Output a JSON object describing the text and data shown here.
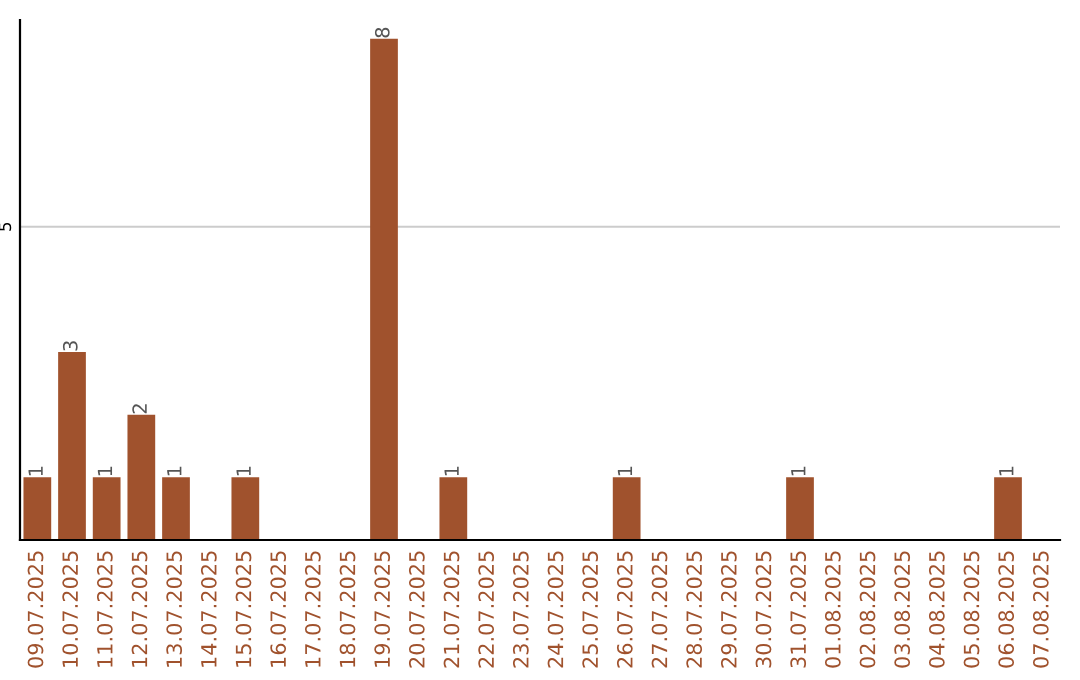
{
  "chart_data": {
    "type": "bar",
    "categories": [
      "09.07.2025",
      "10.07.2025",
      "11.07.2025",
      "12.07.2025",
      "13.07.2025",
      "14.07.2025",
      "15.07.2025",
      "16.07.2025",
      "17.07.2025",
      "18.07.2025",
      "19.07.2025",
      "20.07.2025",
      "21.07.2025",
      "22.07.2025",
      "23.07.2025",
      "24.07.2025",
      "25.07.2025",
      "26.07.2025",
      "27.07.2025",
      "28.07.2025",
      "29.07.2025",
      "30.07.2025",
      "31.07.2025",
      "01.08.2025",
      "02.08.2025",
      "03.08.2025",
      "04.08.2025",
      "05.08.2025",
      "06.08.2025",
      "07.08.2025"
    ],
    "values": [
      1,
      3,
      1,
      2,
      1,
      0,
      1,
      0,
      0,
      0,
      8,
      0,
      1,
      0,
      0,
      0,
      0,
      1,
      0,
      0,
      0,
      0,
      1,
      0,
      0,
      0,
      0,
      0,
      1,
      0
    ],
    "value_labels": [
      "1",
      "3",
      "1",
      "2",
      "1",
      null,
      "1",
      null,
      null,
      null,
      "8",
      null,
      "1",
      null,
      null,
      null,
      null,
      "1",
      null,
      null,
      null,
      null,
      "1",
      null,
      null,
      null,
      null,
      null,
      "1",
      null
    ],
    "color": "#a0522d",
    "ylim": [
      0,
      8.3
    ],
    "yticks": [
      5
    ],
    "grid": "y",
    "legend": false
  }
}
